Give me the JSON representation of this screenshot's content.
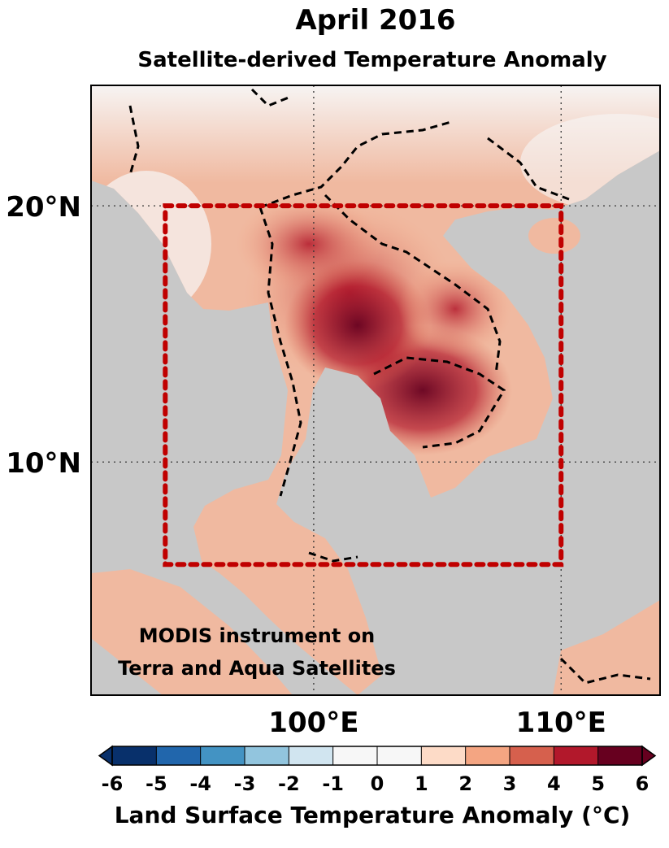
{
  "title": "April 2016",
  "subtitle": "Satellite-derived Temperature Anomaly",
  "map": {
    "lon_range": [
      91,
      114
    ],
    "lat_range": [
      0.9,
      24.7
    ],
    "lat_ticks": [
      {
        "value": 20,
        "label": "20°N"
      },
      {
        "value": 10,
        "label": "10°N"
      }
    ],
    "lon_ticks": [
      {
        "value": 100,
        "label": "100°E"
      },
      {
        "value": 110,
        "label": "110°E"
      }
    ],
    "region_box": {
      "lon": [
        94,
        110
      ],
      "lat": [
        6,
        20
      ],
      "color": "#c00000"
    },
    "annotation": [
      "MODIS instrument on",
      "Terra and Aqua Satellites"
    ]
  },
  "colorbar": {
    "ticks": [
      -6,
      -5,
      -4,
      -3,
      -2,
      -1,
      0,
      1,
      2,
      3,
      4,
      5,
      6
    ],
    "colors": [
      "#08306b",
      "#2166ac",
      "#4393c3",
      "#92c5de",
      "#d1e5f0",
      "#f7f7f7",
      "#f7f7f7",
      "#fddbc7",
      "#f4a582",
      "#d6604d",
      "#b2182b",
      "#67001f"
    ],
    "label": "Land Surface Temperature Anomaly (°C)"
  }
}
